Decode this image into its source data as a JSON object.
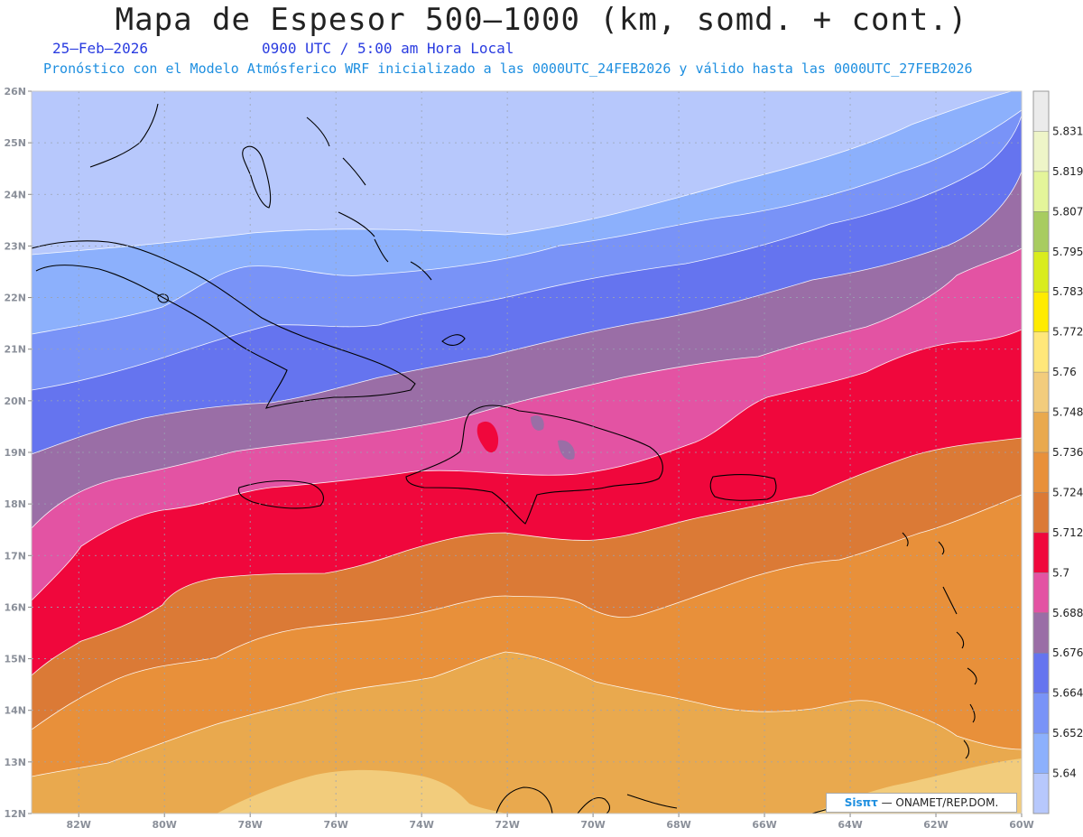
{
  "header": {
    "title": "Mapa de Espesor 500—1000 (km, somd. + cont.)",
    "date": "25—Feb—2026",
    "time": "0900 UTC / 5:00 am Hora Local",
    "model": "Pronóstico con el Modelo Atmósferico WRF inicializado a las 0000UTC_24FEB2026 y válido hasta las  0000UTC_27FEB2026"
  },
  "axes": {
    "lat_labels": [
      "26N",
      "25N",
      "24N",
      "23N",
      "22N",
      "21N",
      "20N",
      "19N",
      "18N",
      "17N",
      "16N",
      "15N",
      "14N",
      "13N",
      "12N"
    ],
    "lon_labels": [
      "82W",
      "80W",
      "78W",
      "76W",
      "74W",
      "72W",
      "70W",
      "68W",
      "66W",
      "64W",
      "62W",
      "60W"
    ],
    "lat_values": [
      26,
      25,
      24,
      23,
      22,
      21,
      20,
      19,
      18,
      17,
      16,
      15,
      14,
      13,
      12
    ],
    "lon_values": [
      -82,
      -80,
      -78,
      -76,
      -74,
      -72,
      -70,
      -68,
      -66,
      -64,
      -62,
      -60
    ]
  },
  "colorbar": {
    "labels": [
      "5.831",
      "5.819",
      "5.807",
      "5.795",
      "5.783",
      "5.772",
      "5.76",
      "5.748",
      "5.736",
      "5.724",
      "5.712",
      "5.7",
      "5.688",
      "5.676",
      "5.664",
      "5.652",
      "5.64"
    ],
    "colors": [
      "#ebebeb",
      "#eef5c8",
      "#e4f59a",
      "#a8cc60",
      "#d9ec1e",
      "#ffeb00",
      "#ffe77a",
      "#f2cc7c",
      "#e9a94e",
      "#e8903a",
      "#db7a36",
      "#f0073c",
      "#e353a3",
      "#9a6ea6",
      "#6574ef",
      "#7993f7",
      "#8cb0fc",
      "#b7c8fc"
    ]
  },
  "contour_colors": {
    "c5640": "#b7c8fc",
    "c5652": "#8cb0fc",
    "c5664": "#7993f7",
    "c5676": "#6574ef",
    "c5688": "#9a6ea6",
    "c5700": "#e353a3",
    "c5712": "#f0073c",
    "c5724": "#db7a36",
    "c5736": "#e8903a",
    "c5748": "#e9a94e",
    "c5760": "#f2cc7c"
  },
  "credit": {
    "brand": "Sisπτ",
    "text": " — ONAMET/REP.DOM."
  }
}
